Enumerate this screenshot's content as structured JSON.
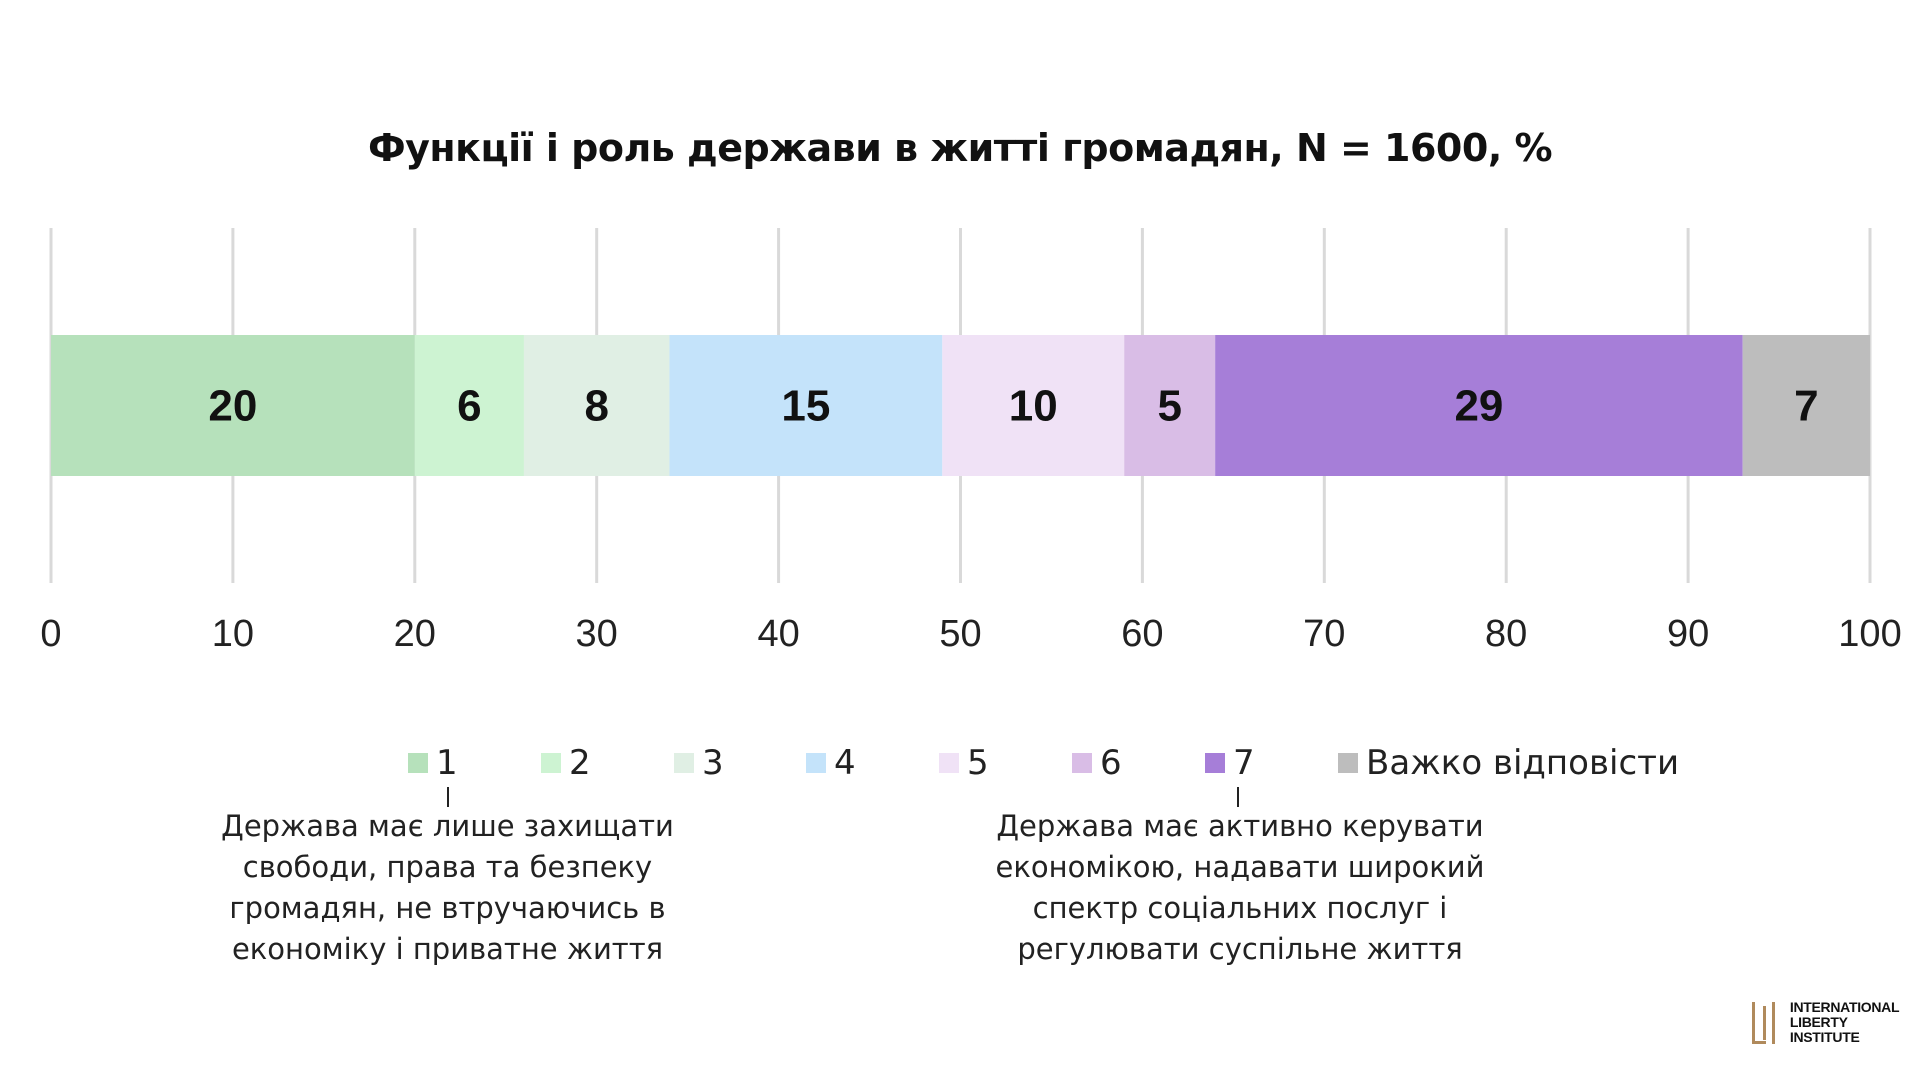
{
  "chart_data": {
    "type": "bar",
    "orientation": "horizontal-stacked",
    "title": "Функції і роль держави в житті громадян, N = 1600, %",
    "categories": [
      ""
    ],
    "series": [
      {
        "name": "1",
        "values": [
          20
        ],
        "color": "#b6e1bb"
      },
      {
        "name": "2",
        "values": [
          6
        ],
        "color": "#cdf3d2"
      },
      {
        "name": "3",
        "values": [
          8
        ],
        "color": "#e0efe4"
      },
      {
        "name": "4",
        "values": [
          15
        ],
        "color": "#c4e3fa"
      },
      {
        "name": "5",
        "values": [
          10
        ],
        "color": "#f0e2f6"
      },
      {
        "name": "6",
        "values": [
          5
        ],
        "color": "#d9bde6"
      },
      {
        "name": "7",
        "values": [
          29
        ],
        "color": "#a67ed8"
      },
      {
        "name": "Важко відповісти",
        "values": [
          7
        ],
        "color": "#bdbdbd"
      }
    ],
    "xlim": [
      0,
      100
    ],
    "x_ticks": [
      "0",
      "10",
      "20",
      "30",
      "40",
      "50",
      "60",
      "70",
      "80",
      "90",
      "100"
    ],
    "grid": true,
    "legend_position": "bottom"
  },
  "annotations": {
    "left": "Держава має лише захищати свободи, права та безпеку громадян, не втручаючись в економіку і приватне життя",
    "right": "Держава має активно керувати економікою, надавати широкий спектр соціальних послуг і регулювати суспільне життя"
  },
  "logo": {
    "line1": "INTERNATIONAL",
    "line2": "LIBERTY INSTITUTE",
    "color": "#b08a5c"
  }
}
